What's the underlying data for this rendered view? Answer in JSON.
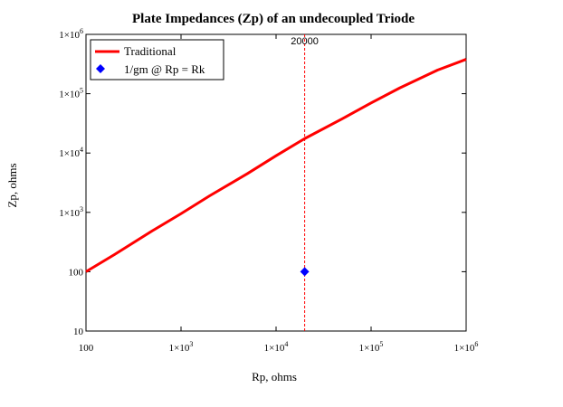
{
  "chart_data": {
    "type": "line",
    "title": "Plate Impedances (Zp) of an undecoupled Triode",
    "xlabel": "Rp, ohms",
    "ylabel": "Zp, ohms",
    "xscale": "log",
    "yscale": "log",
    "xlim": [
      100,
      1000000
    ],
    "ylim": [
      10,
      1000000
    ],
    "grid": false,
    "legend_position": "top-left",
    "x_ticks": [
      {
        "value": 100,
        "base": "100",
        "exp": ""
      },
      {
        "value": 1000,
        "base": "1×10",
        "exp": "3"
      },
      {
        "value": 10000,
        "base": "1×10",
        "exp": "4"
      },
      {
        "value": 100000,
        "base": "1×10",
        "exp": "5"
      },
      {
        "value": 1000000,
        "base": "1×10",
        "exp": "6"
      }
    ],
    "y_ticks": [
      {
        "value": 10,
        "base": "10",
        "exp": ""
      },
      {
        "value": 100,
        "base": "100",
        "exp": ""
      },
      {
        "value": 1000,
        "base": "1×10",
        "exp": "3"
      },
      {
        "value": 10000,
        "base": "1×10",
        "exp": "4"
      },
      {
        "value": 100000,
        "base": "1×10",
        "exp": "5"
      },
      {
        "value": 1000000,
        "base": "1×10",
        "exp": "6"
      }
    ],
    "series": [
      {
        "name": "Traditional",
        "kind": "line",
        "color": "#ff0000",
        "x": [
          100,
          200,
          500,
          1000,
          2000,
          5000,
          10000,
          20000,
          50000,
          100000,
          200000,
          500000,
          1000000
        ],
        "y": [
          100,
          195,
          490,
          950,
          1900,
          4500,
          9000,
          17500,
          38000,
          70000,
          125000,
          250000,
          380000
        ]
      },
      {
        "name": "1/gm @ Rp = Rk",
        "kind": "marker",
        "color": "#0000ff",
        "x": [
          20000
        ],
        "y": [
          100
        ]
      }
    ],
    "vline": {
      "x": 20000,
      "label": "20000",
      "color": "#ff0000",
      "style": "dashed"
    }
  }
}
